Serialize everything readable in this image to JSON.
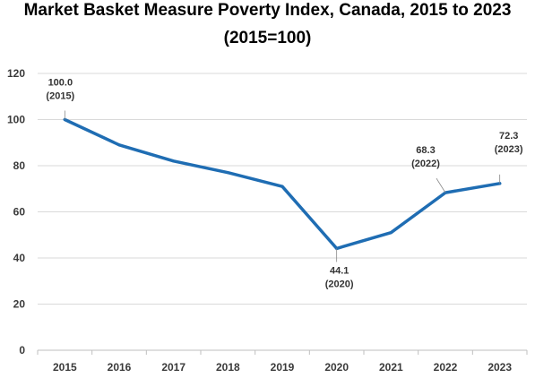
{
  "chart_data": {
    "type": "line",
    "title_line1": "Market Basket Measure Poverty Index, Canada, 2015 to 2023",
    "title_line2": "(2015=100)",
    "categories": [
      "2015",
      "2016",
      "2017",
      "2018",
      "2019",
      "2020",
      "2021",
      "2022",
      "2023"
    ],
    "series": [
      {
        "values": [
          100.0,
          89,
          82,
          77,
          71,
          44.1,
          51,
          68.3,
          72.3
        ],
        "color": "#1f6db3"
      }
    ],
    "ylim": [
      0,
      120
    ],
    "yticks": [
      0,
      20,
      40,
      60,
      80,
      100,
      120
    ],
    "grid": true,
    "annotations": [
      {
        "index": 0,
        "value": "100.0",
        "year": "(2015)"
      },
      {
        "index": 5,
        "value": "44.1",
        "year": "(2020)"
      },
      {
        "index": 7,
        "value": "68.3",
        "year": "(2022)"
      },
      {
        "index": 8,
        "value": "72.3",
        "year": "(2023)"
      }
    ]
  }
}
